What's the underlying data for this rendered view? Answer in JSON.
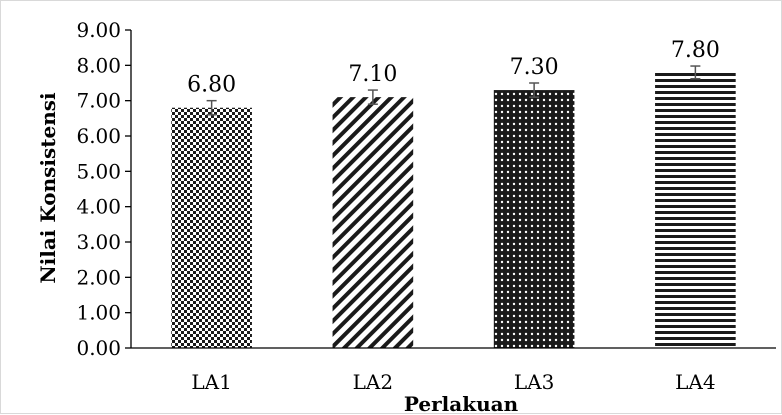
{
  "chart_data": {
    "type": "bar",
    "title": "",
    "xlabel": "Perlakuan",
    "ylabel": "Nilai Konsistensi",
    "categories": [
      "LA1",
      "LA2",
      "LA3",
      "LA4"
    ],
    "values": [
      6.8,
      7.1,
      7.3,
      7.8
    ],
    "value_labels": [
      "6.80",
      "7.10",
      "7.30",
      "7.80"
    ],
    "error": [
      0.2,
      0.2,
      0.2,
      0.18
    ],
    "patterns": [
      "checker",
      "diagonal-stripes",
      "dots",
      "horizontal-stripes"
    ],
    "ylim": [
      0,
      9
    ],
    "yticks": [
      0,
      1,
      2,
      3,
      4,
      5,
      6,
      7,
      8,
      9
    ],
    "ytick_labels": [
      "0.00",
      "1.00",
      "2.00",
      "3.00",
      "4.00",
      "5.00",
      "6.00",
      "7.00",
      "8.00",
      "9.00"
    ],
    "grid": false,
    "legend": "none",
    "colors": {
      "bar_fg": "#1a1a1a",
      "bar_bg": "#ffffff",
      "axis": "#000000",
      "errorbar": "#555555"
    }
  }
}
